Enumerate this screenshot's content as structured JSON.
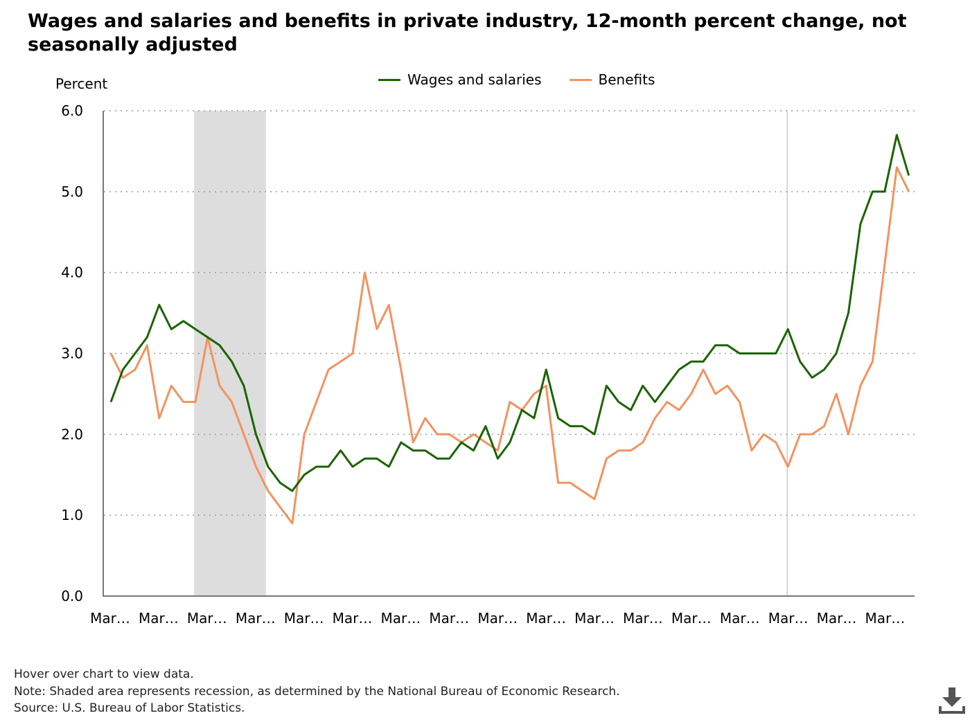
{
  "title": "Wages and salaries and benefits in private industry, 12-month percent change, not seasonally adjusted",
  "notes": {
    "hover": "Hover over chart to view data.",
    "note": "Note: Shaded area represents recession, as determined by the National Bureau of Economic Research.",
    "source": "Source: U.S. Bureau of Labor Statistics."
  },
  "download_icon": "download-icon",
  "chart_data": {
    "type": "line",
    "ylabel": "Percent",
    "xlabel": "",
    "ylim": [
      0,
      6
    ],
    "yticks": [
      "0.0",
      "1.0",
      "2.0",
      "3.0",
      "4.0",
      "5.0",
      "6.0"
    ],
    "x_tick_labels": [
      "Mar…",
      "Mar…",
      "Mar…",
      "Mar…",
      "Mar…",
      "Mar…",
      "Mar…",
      "Mar…",
      "Mar…",
      "Mar…",
      "Mar…",
      "Mar…",
      "Mar…",
      "Mar…",
      "Mar…",
      "Mar…",
      "Mar…"
    ],
    "grid": true,
    "grid_style": "dotted horizontal",
    "legend_position": "top-center",
    "recession_shading": {
      "start_index": 7.0,
      "end_index": 13.0,
      "color": "#dddddd"
    },
    "reference_line_index": 56,
    "series": [
      {
        "name": "Wages and salaries",
        "color": "#1a6400",
        "values": [
          2.4,
          2.8,
          3.0,
          3.2,
          3.6,
          3.3,
          3.4,
          3.3,
          3.2,
          3.1,
          2.9,
          2.6,
          2.0,
          1.6,
          1.4,
          1.3,
          1.5,
          1.6,
          1.6,
          1.8,
          1.6,
          1.7,
          1.7,
          1.6,
          1.9,
          1.8,
          1.8,
          1.7,
          1.7,
          1.9,
          1.8,
          2.1,
          1.7,
          1.9,
          2.3,
          2.2,
          2.8,
          2.2,
          2.1,
          2.1,
          2.0,
          2.6,
          2.4,
          2.3,
          2.6,
          2.4,
          2.6,
          2.8,
          2.9,
          2.9,
          3.1,
          3.1,
          3.0,
          3.0,
          3.0,
          3.0,
          3.3,
          2.9,
          2.7,
          2.8,
          3.0,
          3.5,
          4.6,
          5.0,
          5.0,
          5.7,
          5.2
        ]
      },
      {
        "name": "Benefits",
        "color": "#f4925e",
        "values": [
          3.0,
          2.7,
          2.8,
          3.1,
          2.2,
          2.6,
          2.4,
          2.4,
          3.2,
          2.6,
          2.4,
          2.0,
          1.6,
          1.3,
          1.1,
          0.9,
          2.0,
          2.4,
          2.8,
          2.9,
          3.0,
          4.0,
          3.3,
          3.6,
          2.8,
          1.9,
          2.2,
          2.0,
          2.0,
          1.9,
          2.0,
          1.9,
          1.8,
          2.4,
          2.3,
          2.5,
          2.6,
          1.4,
          1.4,
          1.3,
          1.2,
          1.7,
          1.8,
          1.8,
          1.9,
          2.2,
          2.4,
          2.3,
          2.5,
          2.8,
          2.5,
          2.6,
          2.4,
          1.8,
          2.0,
          1.9,
          1.6,
          2.0,
          2.0,
          2.1,
          2.5,
          2.0,
          2.6,
          2.9,
          4.1,
          5.3,
          5.0
        ]
      }
    ]
  }
}
